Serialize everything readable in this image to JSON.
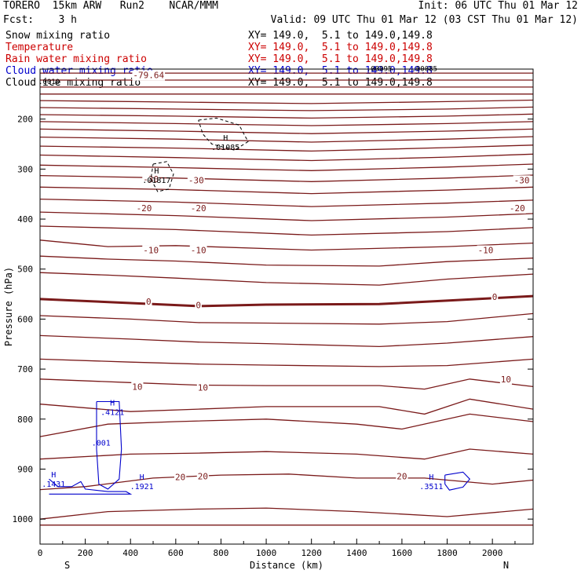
{
  "header": {
    "model": "TORERO  15km ARW   Run2    NCAR/MMM",
    "init": "Init: 06 UTC Thu 01 Mar 12",
    "fcst": "Fcst:    3 h",
    "valid": "Valid: 09 UTC Thu 01 Mar 12 (03 CST Thu 01 Mar 12)"
  },
  "legend": [
    {
      "label": "Snow mixing ratio",
      "xy": "",
      "color": "#000000"
    },
    {
      "label": "Temperature",
      "xy": "XY= 149.0,  5.1 to 149.0,149.8",
      "color": "#cc0000"
    },
    {
      "label": "Rain water mixing ratio",
      "xy": "XY= 149.0,  5.1 to 149.0,149.8",
      "color": "#cc0000"
    },
    {
      "label": "Cloud water mixing ratio",
      "xy": "XY= 149.0,  5.1 to 149.0,149.8",
      "color": "#0000cc"
    },
    {
      "label": "Cloud ice mixing ratio",
      "xy": "XY= 149.0,  5.1 to 149.0,149.8",
      "color": "#000000"
    }
  ],
  "snow_xy": "XY= 149.0,  5.1 to 149.0,149.8",
  "chart_data": {
    "type": "line",
    "xlabel": "Distance (km)",
    "ylabel": "Pressure (hPa)",
    "xlim": [
      0,
      2180
    ],
    "ylim": [
      1050,
      100
    ],
    "x_ticks": [
      0,
      200,
      400,
      600,
      800,
      1000,
      1200,
      1400,
      1600,
      1800,
      2000
    ],
    "y_ticks": [
      200,
      300,
      400,
      500,
      600,
      700,
      800,
      900,
      1000
    ],
    "x_end_labels": {
      "left": "S",
      "right": "N"
    },
    "temperature_color": "#7a1a1a",
    "cloudwater_color": "#0000cc",
    "cloudice_color": "#000000",
    "temperature_isotherms": [
      [
        [
          0,
          108
        ],
        [
          2180,
          108
        ]
      ],
      [
        [
          0,
          122
        ],
        [
          2180,
          122
        ]
      ],
      [
        [
          0,
          136
        ],
        [
          2180,
          136
        ]
      ],
      [
        [
          0,
          150
        ],
        [
          2180,
          150
        ]
      ],
      [
        [
          0,
          163
        ],
        [
          600,
          166
        ],
        [
          1200,
          169
        ],
        [
          1800,
          165
        ],
        [
          2180,
          162
        ]
      ],
      [
        [
          0,
          177
        ],
        [
          600,
          180
        ],
        [
          1200,
          183
        ],
        [
          1800,
          180
        ],
        [
          2180,
          176
        ]
      ],
      [
        [
          0,
          191
        ],
        [
          600,
          194
        ],
        [
          1200,
          198
        ],
        [
          1800,
          194
        ],
        [
          2180,
          190
        ]
      ],
      [
        [
          0,
          205
        ],
        [
          600,
          209
        ],
        [
          1200,
          213
        ],
        [
          1800,
          209
        ],
        [
          2180,
          205
        ]
      ],
      [
        [
          0,
          220
        ],
        [
          600,
          224
        ],
        [
          1200,
          229
        ],
        [
          1800,
          224
        ],
        [
          2180,
          220
        ]
      ],
      [
        [
          0,
          236
        ],
        [
          600,
          240
        ],
        [
          1200,
          246
        ],
        [
          1800,
          240
        ],
        [
          2180,
          235
        ]
      ],
      [
        [
          0,
          254
        ],
        [
          600,
          258
        ],
        [
          1200,
          264
        ],
        [
          1800,
          257
        ],
        [
          2180,
          252
        ]
      ],
      [
        [
          0,
          272
        ],
        [
          600,
          277
        ],
        [
          1200,
          283
        ],
        [
          1800,
          276
        ],
        [
          2180,
          270
        ]
      ],
      [
        [
          0,
          292
        ],
        [
          600,
          297
        ],
        [
          1200,
          303
        ],
        [
          1800,
          296
        ],
        [
          2180,
          290
        ]
      ],
      [
        [
          0,
          313
        ],
        [
          600,
          318
        ],
        [
          1200,
          325
        ],
        [
          1800,
          318
        ],
        [
          2180,
          312
        ]
      ],
      [
        [
          0,
          336
        ],
        [
          600,
          341
        ],
        [
          1200,
          349
        ],
        [
          1800,
          342
        ],
        [
          2180,
          336
        ]
      ],
      [
        [
          0,
          360
        ],
        [
          600,
          366
        ],
        [
          1200,
          375
        ],
        [
          1800,
          368
        ],
        [
          2180,
          362
        ]
      ],
      [
        [
          0,
          386
        ],
        [
          600,
          393
        ],
        [
          1200,
          403
        ],
        [
          1800,
          396
        ],
        [
          2180,
          389
        ]
      ],
      [
        [
          0,
          414
        ],
        [
          600,
          421
        ],
        [
          1200,
          432
        ],
        [
          1800,
          425
        ],
        [
          2180,
          417
        ]
      ],
      [
        [
          0,
          442
        ],
        [
          300,
          455
        ],
        [
          600,
          453
        ],
        [
          1200,
          462
        ],
        [
          1800,
          455
        ],
        [
          2180,
          448
        ]
      ],
      [
        [
          0,
          474
        ],
        [
          300,
          480
        ],
        [
          600,
          484
        ],
        [
          1000,
          492
        ],
        [
          1500,
          494
        ],
        [
          1800,
          485
        ],
        [
          2180,
          478
        ]
      ],
      [
        [
          0,
          507
        ],
        [
          300,
          512
        ],
        [
          600,
          518
        ],
        [
          1000,
          527
        ],
        [
          1500,
          532
        ],
        [
          1800,
          520
        ],
        [
          2180,
          510
        ]
      ],
      [
        [
          0,
          560
        ],
        [
          400,
          568
        ],
        [
          700,
          574
        ],
        [
          1000,
          571
        ],
        [
          1500,
          570
        ],
        [
          1800,
          563
        ],
        [
          2180,
          554
        ]
      ],
      [
        [
          0,
          593
        ],
        [
          400,
          600
        ],
        [
          700,
          607
        ],
        [
          1000,
          608
        ],
        [
          1500,
          610
        ],
        [
          1800,
          605
        ],
        [
          2180,
          589
        ]
      ],
      [
        [
          0,
          633
        ],
        [
          400,
          640
        ],
        [
          700,
          646
        ],
        [
          1000,
          649
        ],
        [
          1500,
          655
        ],
        [
          1800,
          648
        ],
        [
          2180,
          635
        ]
      ],
      [
        [
          0,
          680
        ],
        [
          400,
          686
        ],
        [
          700,
          690
        ],
        [
          1000,
          692
        ],
        [
          1500,
          695
        ],
        [
          1800,
          693
        ],
        [
          2180,
          680
        ]
      ],
      [
        [
          0,
          720
        ],
        [
          400,
          727
        ],
        [
          700,
          732
        ],
        [
          1000,
          733
        ],
        [
          1500,
          733
        ],
        [
          1700,
          740
        ],
        [
          1900,
          720
        ],
        [
          2180,
          735
        ]
      ],
      [
        [
          0,
          770
        ],
        [
          400,
          785
        ],
        [
          700,
          780
        ],
        [
          1000,
          775
        ],
        [
          1500,
          775
        ],
        [
          1700,
          790
        ],
        [
          1900,
          760
        ],
        [
          2180,
          780
        ]
      ],
      [
        [
          0,
          835
        ],
        [
          300,
          810
        ],
        [
          600,
          805
        ],
        [
          1000,
          800
        ],
        [
          1400,
          810
        ],
        [
          1600,
          820
        ],
        [
          1900,
          790
        ],
        [
          2180,
          805
        ]
      ],
      [
        [
          0,
          880
        ],
        [
          400,
          870
        ],
        [
          700,
          868
        ],
        [
          1000,
          865
        ],
        [
          1400,
          870
        ],
        [
          1700,
          880
        ],
        [
          1900,
          860
        ],
        [
          2180,
          870
        ]
      ],
      [
        [
          0,
          941
        ],
        [
          200,
          935
        ],
        [
          500,
          918
        ],
        [
          800,
          912
        ],
        [
          1100,
          910
        ],
        [
          1400,
          918
        ],
        [
          1700,
          918
        ],
        [
          2000,
          930
        ],
        [
          2180,
          922
        ]
      ],
      [
        [
          0,
          1000
        ],
        [
          300,
          985
        ],
        [
          700,
          980
        ],
        [
          1000,
          978
        ],
        [
          1400,
          985
        ],
        [
          1800,
          995
        ],
        [
          2180,
          980
        ]
      ],
      [
        [
          0,
          1012
        ],
        [
          2180,
          1012
        ]
      ]
    ],
    "bold_isotherm_index": 21,
    "temperature_labels": [
      {
        "text": "-79.64",
        "x": 480,
        "p": 112
      },
      {
        "text": "-30",
        "x": 490,
        "p": 320
      },
      {
        "text": "-30",
        "x": 690,
        "p": 322
      },
      {
        "text": "-30",
        "x": 2130,
        "p": 322
      },
      {
        "text": "-20",
        "x": 460,
        "p": 378
      },
      {
        "text": "-20",
        "x": 700,
        "p": 378
      },
      {
        "text": "-20",
        "x": 2110,
        "p": 378
      },
      {
        "text": "-10",
        "x": 490,
        "p": 462
      },
      {
        "text": "-10",
        "x": 700,
        "p": 462
      },
      {
        "text": "-10",
        "x": 1970,
        "p": 462
      },
      {
        "text": "0",
        "x": 480,
        "p": 565
      },
      {
        "text": "0",
        "x": 700,
        "p": 572
      },
      {
        "text": "0",
        "x": 2010,
        "p": 555
      },
      {
        "text": "10",
        "x": 430,
        "p": 735
      },
      {
        "text": "10",
        "x": 720,
        "p": 737
      },
      {
        "text": "10",
        "x": 2060,
        "p": 720
      },
      {
        "text": "20",
        "x": 620,
        "p": 916
      },
      {
        "text": "20",
        "x": 720,
        "p": 914
      },
      {
        "text": "20",
        "x": 1600,
        "p": 914
      }
    ],
    "cloudice_contours": [
      [
        [
          700,
          202
        ],
        [
          780,
          198
        ],
        [
          880,
          212
        ],
        [
          920,
          245
        ],
        [
          860,
          262
        ],
        [
          760,
          250
        ],
        [
          720,
          230
        ],
        [
          700,
          202
        ]
      ],
      [
        [
          500,
          290
        ],
        [
          560,
          285
        ],
        [
          590,
          310
        ],
        [
          570,
          340
        ],
        [
          520,
          345
        ],
        [
          490,
          320
        ],
        [
          500,
          290
        ]
      ]
    ],
    "cloudice_maxima": [
      {
        "h": "H",
        "value": ".01085",
        "x": 820,
        "p": 262
      },
      {
        "h": "H",
        "value": ".01817",
        "x": 515,
        "p": 328
      }
    ],
    "snow_label": ".0010",
    "top_labels": [
      ".00095",
      ".00085"
    ],
    "cloudwater_contours": [
      [
        [
          250,
          765
        ],
        [
          350,
          765
        ],
        [
          360,
          860
        ],
        [
          350,
          920
        ],
        [
          300,
          940
        ],
        [
          260,
          930
        ],
        [
          250,
          860
        ],
        [
          250,
          765
        ]
      ],
      [
        [
          40,
          920
        ],
        [
          80,
          935
        ],
        [
          140,
          935
        ],
        [
          180,
          925
        ],
        [
          200,
          940
        ],
        [
          300,
          945
        ],
        [
          380,
          945
        ],
        [
          400,
          950
        ],
        [
          200,
          950
        ],
        [
          40,
          950
        ]
      ],
      [
        [
          1790,
          912
        ],
        [
          1870,
          906
        ],
        [
          1900,
          920
        ],
        [
          1870,
          936
        ],
        [
          1810,
          942
        ],
        [
          1790,
          930
        ],
        [
          1790,
          912
        ]
      ]
    ],
    "cloudwater_maxima": [
      {
        "h": "H",
        "value": ".4121",
        "x": 320,
        "p": 792
      },
      {
        "h": "",
        "value": ".001",
        "x": 270,
        "p": 853
      },
      {
        "h": "H",
        "value": ".1431",
        "x": 60,
        "p": 935
      },
      {
        "h": "H",
        "value": ".1921",
        "x": 450,
        "p": 940
      },
      {
        "h": "H",
        "value": ".3511",
        "x": 1730,
        "p": 940
      }
    ]
  }
}
